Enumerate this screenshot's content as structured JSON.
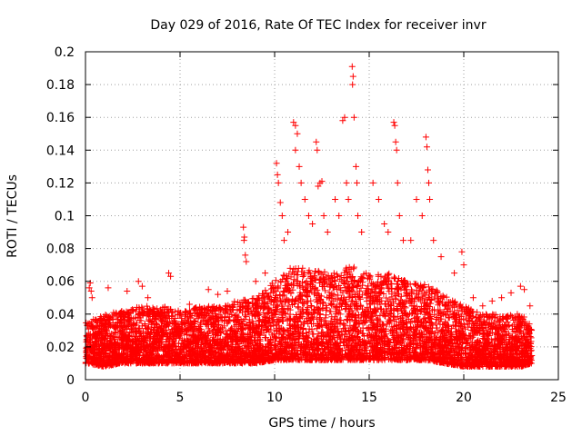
{
  "chart_data": {
    "type": "scatter",
    "title": "Day 029 of 2016, Rate Of TEC Index for receiver invr",
    "xlabel": "GPS time / hours",
    "ylabel": "ROTI / TECUs",
    "xlim": [
      0,
      25
    ],
    "ylim": [
      0,
      0.2
    ],
    "x_ticks": [
      0,
      5,
      10,
      15,
      20,
      25
    ],
    "y_ticks": [
      0,
      0.02,
      0.04,
      0.06,
      0.08,
      0.1,
      0.12,
      0.14,
      0.16,
      0.18,
      0.2
    ],
    "grid": true,
    "marker": "+",
    "series_color": "#ff0000",
    "series": [
      {
        "name": "ROTI",
        "points": [
          [
            0.1,
            0.027
          ],
          [
            0.2,
            0.056
          ],
          [
            0.25,
            0.059
          ],
          [
            0.3,
            0.054
          ],
          [
            0.35,
            0.05
          ],
          [
            0.5,
            0.018
          ],
          [
            1.2,
            0.056
          ],
          [
            1.5,
            0.012
          ],
          [
            2.2,
            0.054
          ],
          [
            2.8,
            0.06
          ],
          [
            3.0,
            0.057
          ],
          [
            3.3,
            0.05
          ],
          [
            4.4,
            0.065
          ],
          [
            4.5,
            0.063
          ],
          [
            5.5,
            0.046
          ],
          [
            6.5,
            0.055
          ],
          [
            7.0,
            0.052
          ],
          [
            7.5,
            0.054
          ],
          [
            8.35,
            0.093
          ],
          [
            8.4,
            0.087
          ],
          [
            8.38,
            0.085
          ],
          [
            8.45,
            0.076
          ],
          [
            8.5,
            0.072
          ],
          [
            9.0,
            0.06
          ],
          [
            9.5,
            0.065
          ],
          [
            10.1,
            0.132
          ],
          [
            10.15,
            0.125
          ],
          [
            10.2,
            0.12
          ],
          [
            10.3,
            0.108
          ],
          [
            10.4,
            0.1
          ],
          [
            10.5,
            0.085
          ],
          [
            10.7,
            0.09
          ],
          [
            11.0,
            0.157
          ],
          [
            11.1,
            0.155
          ],
          [
            11.2,
            0.15
          ],
          [
            11.1,
            0.14
          ],
          [
            11.3,
            0.13
          ],
          [
            11.4,
            0.12
          ],
          [
            11.6,
            0.11
          ],
          [
            11.8,
            0.1
          ],
          [
            12.0,
            0.095
          ],
          [
            12.2,
            0.145
          ],
          [
            12.25,
            0.14
          ],
          [
            12.3,
            0.118
          ],
          [
            12.4,
            0.12
          ],
          [
            12.5,
            0.121
          ],
          [
            12.6,
            0.1
          ],
          [
            12.8,
            0.09
          ],
          [
            13.2,
            0.11
          ],
          [
            13.4,
            0.1
          ],
          [
            13.6,
            0.158
          ],
          [
            13.7,
            0.16
          ],
          [
            13.8,
            0.12
          ],
          [
            13.9,
            0.11
          ],
          [
            14.1,
            0.191
          ],
          [
            14.15,
            0.185
          ],
          [
            14.12,
            0.18
          ],
          [
            14.2,
            0.16
          ],
          [
            14.3,
            0.13
          ],
          [
            14.35,
            0.12
          ],
          [
            14.4,
            0.1
          ],
          [
            14.6,
            0.09
          ],
          [
            15.2,
            0.12
          ],
          [
            15.5,
            0.11
          ],
          [
            15.8,
            0.095
          ],
          [
            16.0,
            0.09
          ],
          [
            16.3,
            0.157
          ],
          [
            16.35,
            0.155
          ],
          [
            16.4,
            0.145
          ],
          [
            16.45,
            0.14
          ],
          [
            16.5,
            0.12
          ],
          [
            16.6,
            0.1
          ],
          [
            16.8,
            0.085
          ],
          [
            17.2,
            0.085
          ],
          [
            17.5,
            0.11
          ],
          [
            17.8,
            0.1
          ],
          [
            18.0,
            0.148
          ],
          [
            18.05,
            0.142
          ],
          [
            18.1,
            0.128
          ],
          [
            18.15,
            0.12
          ],
          [
            18.2,
            0.11
          ],
          [
            18.4,
            0.085
          ],
          [
            18.8,
            0.075
          ],
          [
            19.5,
            0.065
          ],
          [
            19.9,
            0.078
          ],
          [
            20.0,
            0.07
          ],
          [
            20.5,
            0.05
          ],
          [
            21.0,
            0.045
          ],
          [
            21.5,
            0.048
          ],
          [
            22.0,
            0.05
          ],
          [
            22.5,
            0.053
          ],
          [
            23.0,
            0.057
          ],
          [
            23.2,
            0.055
          ],
          [
            23.5,
            0.045
          ]
        ]
      }
    ],
    "band_description_data": [
      [
        0,
        0.01,
        0.035
      ],
      [
        1,
        0.008,
        0.04
      ],
      [
        2,
        0.01,
        0.042
      ],
      [
        3,
        0.01,
        0.045
      ],
      [
        4,
        0.01,
        0.045
      ],
      [
        5,
        0.01,
        0.042
      ],
      [
        6,
        0.01,
        0.045
      ],
      [
        7,
        0.01,
        0.045
      ],
      [
        8,
        0.01,
        0.048
      ],
      [
        9,
        0.01,
        0.05
      ],
      [
        10,
        0.012,
        0.06
      ],
      [
        11,
        0.012,
        0.07
      ],
      [
        12,
        0.012,
        0.068
      ],
      [
        13,
        0.012,
        0.065
      ],
      [
        14,
        0.012,
        0.07
      ],
      [
        15,
        0.012,
        0.065
      ],
      [
        16,
        0.012,
        0.065
      ],
      [
        17,
        0.012,
        0.06
      ],
      [
        18,
        0.012,
        0.058
      ],
      [
        19,
        0.01,
        0.052
      ],
      [
        20,
        0.008,
        0.045
      ],
      [
        21,
        0.008,
        0.04
      ],
      [
        22,
        0.008,
        0.04
      ],
      [
        23,
        0.008,
        0.04
      ],
      [
        23.6,
        0.01,
        0.035
      ]
    ]
  }
}
